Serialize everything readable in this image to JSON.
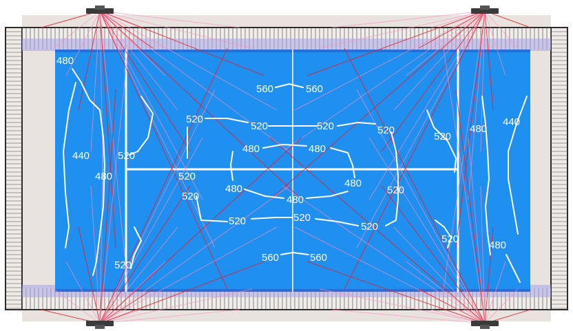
{
  "colors": {
    "court": "#1f8ff0",
    "court_edge": "#2a6fd8",
    "surround": "#e9e3df",
    "glass_band": "#a8a4e6",
    "wall": "#2b2b2b",
    "beam_primary": "#e8202a",
    "beam_secondary": "#ff8fc0",
    "contour": "#ffffff"
  },
  "contours": {
    "unit_note": "",
    "labels": [
      {
        "id": "c480-top-left",
        "text": "480"
      },
      {
        "id": "c440-left",
        "text": "440"
      },
      {
        "id": "c480-left-mid",
        "text": "480"
      },
      {
        "id": "c520-left-service",
        "text": "520"
      },
      {
        "id": "c520-left-bottom",
        "text": "520"
      },
      {
        "id": "c560-top-a",
        "text": "560"
      },
      {
        "id": "c560-top-b",
        "text": "560"
      },
      {
        "id": "c520-upper-1",
        "text": "520"
      },
      {
        "id": "c520-upper-2",
        "text": "520"
      },
      {
        "id": "c520-upper-3",
        "text": "520"
      },
      {
        "id": "c520-upper-4",
        "text": "520"
      },
      {
        "id": "c480-upper-1",
        "text": "480"
      },
      {
        "id": "c480-upper-2",
        "text": "480"
      },
      {
        "id": "c520-mid-left-a",
        "text": "520"
      },
      {
        "id": "c520-mid-left-b",
        "text": "520"
      },
      {
        "id": "c480-mid-1",
        "text": "480"
      },
      {
        "id": "c480-mid-2",
        "text": "480"
      },
      {
        "id": "c480-mid-3",
        "text": "480"
      },
      {
        "id": "c520-mid-right",
        "text": "520"
      },
      {
        "id": "c520-lower-1",
        "text": "520"
      },
      {
        "id": "c520-lower-2",
        "text": "520"
      },
      {
        "id": "c520-lower-3",
        "text": "520"
      },
      {
        "id": "c560-bottom-a",
        "text": "560"
      },
      {
        "id": "c560-bottom-b",
        "text": "560"
      },
      {
        "id": "c520-right-upper",
        "text": "520"
      },
      {
        "id": "c480-right-upper",
        "text": "480"
      },
      {
        "id": "c440-right",
        "text": "440"
      },
      {
        "id": "c520-right-lower",
        "text": "520"
      },
      {
        "id": "c480-right-lower",
        "text": "480"
      }
    ]
  },
  "luminaires": [
    {
      "id": "light-top-left",
      "name": "floodlight-top-left"
    },
    {
      "id": "light-top-right",
      "name": "floodlight-top-right"
    },
    {
      "id": "light-bottom-left",
      "name": "floodlight-bottom-left"
    },
    {
      "id": "light-bottom-right",
      "name": "floodlight-bottom-right"
    }
  ]
}
